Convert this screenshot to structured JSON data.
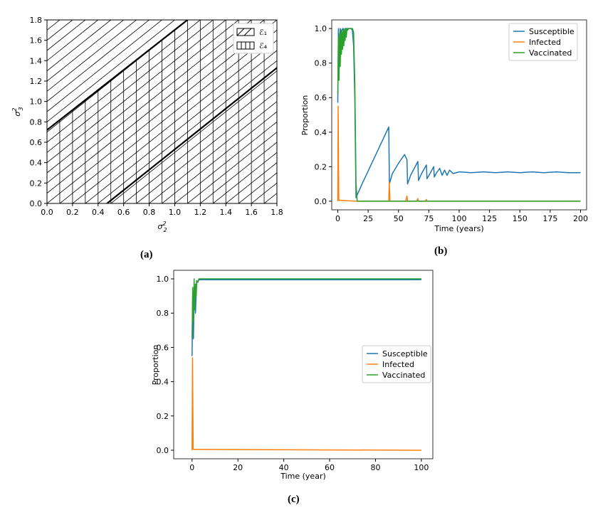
{
  "captions": {
    "a": "(a)",
    "b": "(b)",
    "c": "(c)"
  },
  "chart_data": [
    {
      "id": "a",
      "type": "area",
      "xlabel": "σ²₂",
      "ylabel": "σ²₃",
      "xlim": [
        0,
        1.8
      ],
      "ylim": [
        0,
        1.8
      ],
      "xticks": [
        "0.0",
        "0.2",
        "0.4",
        "0.6",
        "0.8",
        "1.0",
        "1.2",
        "1.4",
        "1.6",
        "1.8"
      ],
      "yticks": [
        "0.0",
        "0.2",
        "0.4",
        "0.6",
        "0.8",
        "1.0",
        "1.2",
        "1.4",
        "1.6",
        "1.8"
      ],
      "boundary_lines": [
        {
          "x": [
            0,
            1.1
          ],
          "y": [
            0.72,
            1.8
          ]
        },
        {
          "x": [
            0.47,
            1.8
          ],
          "y": [
            0,
            1.33
          ]
        }
      ],
      "legend": [
        "ℰ₁",
        "ℰ₄"
      ],
      "legend_position": "top-right",
      "hatch": {
        "region_1": "diagonal",
        "region_4": "vertical"
      }
    },
    {
      "id": "b",
      "type": "line",
      "xlabel": "Time (years)",
      "ylabel": "Proportion",
      "xlim": [
        -5,
        205
      ],
      "ylim": [
        -0.05,
        1.05
      ],
      "xticks": [
        "0",
        "25",
        "50",
        "75",
        "100",
        "125",
        "150",
        "175",
        "200"
      ],
      "yticks": [
        "0.0",
        "0.2",
        "0.4",
        "0.6",
        "0.8",
        "1.0"
      ],
      "legend_position": "top-right",
      "series": [
        {
          "name": "Susceptible",
          "color": "#1f77b4",
          "x": [
            0,
            0.5,
            1,
            2,
            3,
            4,
            5,
            6,
            7,
            8,
            9,
            10,
            11,
            12,
            13,
            14,
            15,
            20,
            30,
            42,
            42.5,
            45,
            50,
            55,
            57,
            57.5,
            60,
            66,
            66.5,
            69,
            73,
            73.5,
            76,
            79,
            79.5,
            81,
            84,
            86,
            88,
            90,
            92,
            95,
            100,
            110,
            120,
            130,
            140,
            150,
            160,
            170,
            180,
            190,
            200
          ],
          "y": [
            0.57,
            1.0,
            0.8,
            1.0,
            0.98,
            1.0,
            0.99,
            1.0,
            1.0,
            1.0,
            1.0,
            1.0,
            1.0,
            0.99,
            0.9,
            0.6,
            0.02,
            0.1,
            0.25,
            0.43,
            0.1,
            0.16,
            0.22,
            0.27,
            0.24,
            0.1,
            0.15,
            0.23,
            0.12,
            0.16,
            0.21,
            0.13,
            0.16,
            0.2,
            0.14,
            0.16,
            0.19,
            0.15,
            0.18,
            0.15,
            0.18,
            0.16,
            0.17,
            0.165,
            0.17,
            0.165,
            0.17,
            0.165,
            0.17,
            0.165,
            0.17,
            0.165,
            0.165
          ]
        },
        {
          "name": "Infected",
          "color": "#ff7f0e",
          "x": [
            0,
            0.3,
            0.8,
            2,
            15,
            42,
            42.4,
            43,
            56,
            57,
            57.5,
            58,
            65,
            66,
            66.5,
            67,
            72,
            73,
            73.5,
            74,
            200
          ],
          "y": [
            0.0,
            0.55,
            0.005,
            0.005,
            0.0,
            0.0,
            0.11,
            0.0,
            0.0,
            0.03,
            0.0,
            0.0,
            0.0,
            0.015,
            0.0,
            0.0,
            0.0,
            0.01,
            0.0,
            0.0,
            0.0
          ]
        },
        {
          "name": "Vaccinated",
          "color": "#2ca02c",
          "x": [
            0,
            0.5,
            1,
            1.5,
            2,
            2.5,
            3,
            3.5,
            4,
            4.5,
            5,
            5.5,
            6,
            6.5,
            7,
            7.5,
            8,
            9,
            10,
            11,
            12,
            13,
            14,
            15,
            16,
            200
          ],
          "y": [
            0.62,
            0.95,
            0.7,
            0.97,
            0.78,
            0.99,
            0.85,
            0.98,
            0.88,
            1.0,
            0.9,
            0.99,
            0.93,
            1.0,
            0.95,
            1.0,
            0.99,
            1.0,
            1.0,
            1.0,
            1.0,
            0.98,
            0.7,
            0.1,
            0.0,
            0.0
          ]
        }
      ]
    },
    {
      "id": "c",
      "type": "line",
      "xlabel": "Time (year)",
      "ylabel": "Proportion",
      "xlim": [
        -8,
        105
      ],
      "ylim": [
        -0.05,
        1.05
      ],
      "xticks": [
        "0",
        "20",
        "40",
        "60",
        "80",
        "100"
      ],
      "yticks": [
        "0.0",
        "0.2",
        "0.4",
        "0.6",
        "0.8",
        "1.0"
      ],
      "legend_position": "center-right",
      "series": [
        {
          "name": "Susceptible",
          "color": "#1f77b4",
          "x": [
            0,
            0.3,
            0.6,
            1,
            1.5,
            2,
            2.5,
            3,
            100
          ],
          "y": [
            0.55,
            0.9,
            0.65,
            0.95,
            0.8,
            0.99,
            0.98,
            0.995,
            0.995
          ]
        },
        {
          "name": "Infected",
          "color": "#ff7f0e",
          "x": [
            0,
            0.2,
            0.5,
            1,
            100
          ],
          "y": [
            0.0,
            0.54,
            0.005,
            0.005,
            0.0
          ]
        },
        {
          "name": "Vaccinated",
          "color": "#2ca02c",
          "x": [
            0,
            0.3,
            0.6,
            0.9,
            1.2,
            1.5,
            1.8,
            2.1,
            2.5,
            3,
            100
          ],
          "y": [
            0.65,
            0.95,
            0.75,
            1.0,
            0.82,
            0.97,
            0.9,
            0.99,
            0.98,
            1.0,
            1.0
          ]
        }
      ]
    }
  ]
}
